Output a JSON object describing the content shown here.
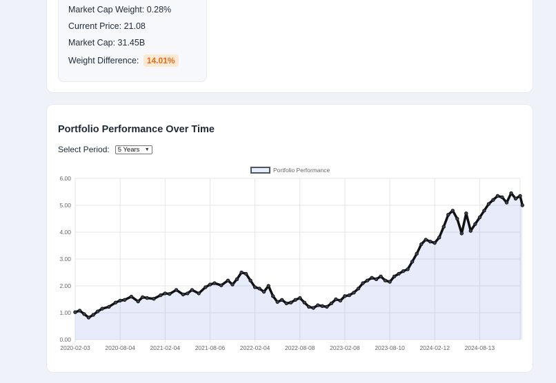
{
  "stats": {
    "market_cap_weight": "Market Cap Weight: 0.28%",
    "current_price": "Current Price: 21.08",
    "market_cap": "Market Cap: 31.45B",
    "weight_difference_label": "Weight Difference:",
    "weight_difference_value": "14.01%"
  },
  "performance": {
    "title": "Portfolio Performance Over Time",
    "period_label": "Select Period:",
    "period_selected": "5 Years"
  },
  "chart_data": {
    "type": "line",
    "title": "",
    "legend": [
      "Portfolio Performance"
    ],
    "legend_position": "top-center",
    "xlabel": "",
    "ylabel": "",
    "ylim": [
      0,
      6
    ],
    "yticks": [
      "0.00",
      "1.00",
      "2.00",
      "3.00",
      "4.00",
      "5.00",
      "6.00"
    ],
    "xticks": [
      "2020-02-03",
      "2020-08-04",
      "2021-02-04",
      "2021-08-06",
      "2022-02-04",
      "2022-08-08",
      "2023-02-08",
      "2023-08-10",
      "2024-02-12",
      "2024-08-13"
    ],
    "grid": true,
    "series": [
      {
        "name": "Portfolio Performance",
        "x": [
          0,
          0.1,
          0.2,
          0.3,
          0.4,
          0.5,
          0.6,
          0.75,
          0.9,
          1.0,
          1.1,
          1.25,
          1.4,
          1.5,
          1.6,
          1.75,
          1.9,
          2.0,
          2.1,
          2.25,
          2.4,
          2.5,
          2.6,
          2.75,
          2.9,
          3.0,
          3.1,
          3.25,
          3.4,
          3.5,
          3.6,
          3.7,
          3.8,
          3.9,
          4.0,
          4.1,
          4.2,
          4.3,
          4.4,
          4.5,
          4.6,
          4.7,
          4.8,
          4.9,
          5.0,
          5.1,
          5.2,
          5.3,
          5.4,
          5.5,
          5.6,
          5.7,
          5.8,
          5.9,
          6.0,
          6.1,
          6.2,
          6.3,
          6.4,
          6.5,
          6.6,
          6.7,
          6.8,
          6.9,
          7.0,
          7.1,
          7.2,
          7.3,
          7.4,
          7.5,
          7.6,
          7.7,
          7.8,
          7.9,
          8.0,
          8.1,
          8.2,
          8.3,
          8.4,
          8.5,
          8.6,
          8.7,
          8.8,
          8.9,
          9.0,
          9.1,
          9.2,
          9.3,
          9.4,
          9.5,
          9.6,
          9.7,
          9.8,
          9.9,
          9.95
        ],
        "values": [
          1.02,
          1.08,
          0.95,
          0.82,
          0.92,
          1.05,
          1.15,
          1.22,
          1.38,
          1.45,
          1.48,
          1.6,
          1.42,
          1.58,
          1.55,
          1.52,
          1.65,
          1.72,
          1.7,
          1.85,
          1.68,
          1.72,
          1.85,
          1.72,
          1.95,
          2.05,
          2.1,
          2.02,
          2.2,
          2.05,
          2.25,
          2.5,
          2.45,
          2.2,
          1.95,
          1.9,
          1.78,
          2.0,
          1.62,
          1.4,
          1.48,
          1.35,
          1.38,
          1.48,
          1.55,
          1.38,
          1.22,
          1.18,
          1.28,
          1.25,
          1.22,
          1.35,
          1.5,
          1.45,
          1.62,
          1.65,
          1.75,
          1.9,
          2.1,
          2.2,
          2.3,
          2.25,
          2.35,
          2.2,
          2.15,
          2.35,
          2.45,
          2.55,
          2.62,
          2.9,
          3.2,
          3.55,
          3.72,
          3.65,
          3.6,
          3.8,
          4.2,
          4.65,
          4.8,
          4.5,
          3.95,
          4.7,
          4.05,
          4.3,
          4.55,
          4.8,
          5.05,
          5.2,
          5.35,
          5.3,
          5.1,
          5.45,
          5.25,
          5.35,
          5.0
        ]
      }
    ]
  }
}
